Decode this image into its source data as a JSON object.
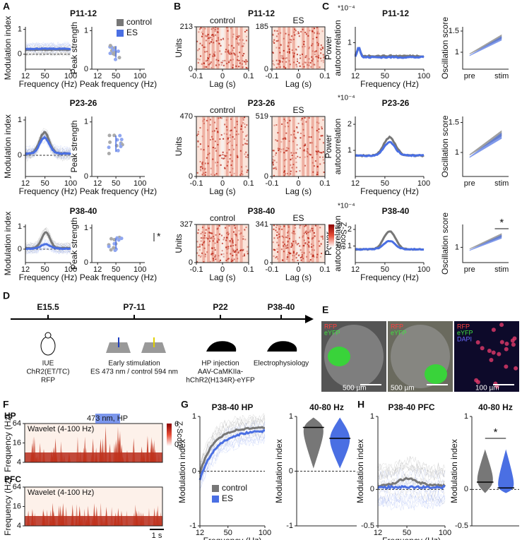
{
  "figure": {
    "panel_labels": [
      "A",
      "B",
      "C",
      "D",
      "E",
      "F",
      "G",
      "H"
    ],
    "ages": [
      "P11-12",
      "P23-26",
      "P38-40"
    ],
    "legend": [
      "control",
      "ES"
    ],
    "exponent": "*10⁻⁴",
    "significance": "*",
    "heat_colorbar": {
      "ticks": [
        "2",
        "0"
      ],
      "label": "Z-Score"
    },
    "plots": [
      {
        "xlabel": "Frequency (Hz)",
        "ylabel": [
          "Modulation index"
        ],
        "xlim": [
          12,
          100
        ],
        "xticks": [
          12,
          50,
          100
        ],
        "ylim": [
          -0.6,
          1.1
        ],
        "yticks": [
          0,
          1
        ]
      },
      {
        "xlabel": "Peak frequency (Hz)",
        "ylabel": [
          "Peak strength"
        ],
        "xlim": [
          0,
          110
        ],
        "xticks": [
          12,
          50,
          100
        ],
        "ylim": [
          0,
          1.1
        ],
        "yticks": [
          0,
          1
        ]
      },
      {
        "subtitle": "control",
        "xlabel": "Lag (s)",
        "ylabel": [
          "Units"
        ],
        "xlim": [
          -0.1,
          0.1
        ],
        "xticks": [
          -0.1,
          0,
          0.1
        ],
        "ylim": [
          0,
          213
        ],
        "yticks": [
          0,
          213
        ]
      },
      {
        "subtitle": "ES",
        "xlabel": "Lag (s)",
        "xlim": [
          -0.1,
          0.1
        ],
        "xticks": [
          -0.1,
          0,
          0.1
        ],
        "ylim": [
          0,
          185
        ],
        "yticks": [
          0,
          185
        ]
      },
      {
        "xlabel": "Frequency (Hz)",
        "ylabel": [
          "Power",
          "autocorrelation"
        ],
        "xlim": [
          12,
          100
        ],
        "xticks": [
          12,
          50,
          100
        ],
        "ylim": [
          0,
          1.6
        ],
        "yticks": [
          1
        ]
      },
      {
        "ylabel": [
          "Oscillation score"
        ],
        "xcategories": [
          "pre",
          "stim"
        ],
        "ylim": [
          0.6,
          1.6
        ],
        "yticks": [
          1,
          1.5
        ]
      },
      {
        "xlabel": "Frequency (Hz)",
        "ylabel": [
          "Modulation index"
        ],
        "xlim": [
          12,
          100
        ],
        "xticks": [
          12,
          50,
          100
        ],
        "ylim": [
          -0.6,
          1.1
        ],
        "yticks": [
          0,
          1
        ]
      },
      {
        "xlabel": "Peak frequency (Hz)",
        "ylabel": [
          "Peak strength"
        ],
        "xlim": [
          0,
          110
        ],
        "xticks": [
          12,
          50,
          100
        ],
        "ylim": [
          0,
          1.1
        ],
        "yticks": [
          0,
          1
        ]
      },
      {
        "subtitle": "control",
        "xlabel": "Lag (s)",
        "ylabel": [
          "Units"
        ],
        "xlim": [
          -0.1,
          0.1
        ],
        "xticks": [
          -0.1,
          0,
          0.1
        ],
        "ylim": [
          0,
          470
        ],
        "yticks": [
          0,
          470
        ]
      },
      {
        "subtitle": "ES",
        "xlabel": "Lag (s)",
        "xlim": [
          -0.1,
          0.1
        ],
        "xticks": [
          -0.1,
          0,
          0.1
        ],
        "ylim": [
          0,
          519
        ],
        "yticks": [
          0,
          519
        ]
      },
      {
        "xlabel": "Frequency (Hz)",
        "ylabel": [
          "Power",
          "autocorrelation"
        ],
        "xlim": [
          12,
          100
        ],
        "xticks": [
          12,
          50,
          100
        ],
        "ylim": [
          0,
          2.3
        ],
        "yticks": [
          1,
          2
        ]
      },
      {
        "ylabel": [
          "Oscillation score"
        ],
        "xcategories": [
          "pre",
          "stim"
        ],
        "ylim": [
          0.6,
          1.6
        ],
        "yticks": [
          1,
          1.5
        ]
      },
      {
        "xlabel": "Frequency (Hz)",
        "ylabel": [
          "Modulation index"
        ],
        "xlim": [
          12,
          100
        ],
        "xticks": [
          12,
          50,
          100
        ],
        "ylim": [
          -0.6,
          1.1
        ],
        "yticks": [
          0,
          1
        ]
      },
      {
        "xlabel": "Peak frequency (Hz)",
        "ylabel": [
          "Peak strength"
        ],
        "xlim": [
          0,
          110
        ],
        "xticks": [
          12,
          50,
          100
        ],
        "ylim": [
          0,
          1.1
        ],
        "yticks": [
          0,
          1
        ]
      },
      {
        "subtitle": "control",
        "xlabel": "Lag (s)",
        "ylabel": [
          "Units"
        ],
        "xlim": [
          -0.1,
          0.1
        ],
        "xticks": [
          -0.1,
          0,
          0.1
        ],
        "ylim": [
          0,
          327
        ],
        "yticks": [
          0,
          327
        ]
      },
      {
        "subtitle": "ES",
        "xlabel": "Lag (s)",
        "xlim": [
          -0.1,
          0.1
        ],
        "xticks": [
          -0.1,
          0,
          0.1
        ],
        "ylim": [
          0,
          341
        ],
        "yticks": [
          0,
          341
        ]
      },
      {
        "xlabel": "Frequency (Hz)",
        "ylabel": [
          "Power",
          "autocorrelation"
        ],
        "xlim": [
          12,
          100
        ],
        "xticks": [
          12,
          50,
          100
        ],
        "ylim": [
          0,
          2.3
        ],
        "yticks": [
          1,
          2
        ]
      },
      {
        "ylabel": [
          "Oscillation score"
        ],
        "xcategories": [
          "pre",
          "stim"
        ],
        "ylim": [
          0.6,
          1.6
        ],
        "yticks": [
          1
        ]
      },
      {
        "title": "P38-40 HP",
        "xlabel": "Frequency (Hz)",
        "ylabel": [
          "Modulation index"
        ],
        "xlim": [
          12,
          100
        ],
        "xticks": [
          12,
          50,
          100
        ],
        "ylim": [
          -1,
          1
        ],
        "yticks": [
          -1,
          0,
          1
        ]
      },
      {
        "title": "40-80 Hz",
        "ylabel": [
          "Modulation index"
        ],
        "ylim": [
          -1,
          1
        ],
        "yticks": [
          -1,
          0,
          1
        ]
      },
      {
        "title": "P38-40 PFC",
        "xlabel": "Frequency (Hz)",
        "ylabel": [
          "Modulation index"
        ],
        "xlim": [
          12,
          100
        ],
        "xticks": [
          12,
          50,
          100
        ],
        "ylim": [
          -0.5,
          1
        ],
        "yticks": [
          -0.5,
          0,
          1
        ]
      },
      {
        "title": "40-80 Hz",
        "ylabel": [
          "Modulation index"
        ],
        "ylim": [
          -0.5,
          1
        ],
        "yticks": [
          -0.5,
          0,
          1
        ]
      }
    ],
    "timeline": [
      {
        "age": "E15.5",
        "lines": [
          "IUE",
          "ChR2(ET/TC)",
          "RFP"
        ]
      },
      {
        "age": "P7-11",
        "lines": [
          "Early stimulation",
          "ES 473 nm / control 594 nm"
        ]
      },
      {
        "age": "P22",
        "lines": [
          "HP injection",
          "AAV-CaMKIIa-",
          "hChR2(H134R)-eYFP"
        ]
      },
      {
        "age": "P38-40",
        "lines": [
          "Electrophysiology"
        ]
      }
    ],
    "images": [
      {
        "labels": [
          "RFP",
          "eYFP"
        ],
        "scale": "500 µm"
      },
      {
        "labels": [
          "RFP",
          "eYFP"
        ],
        "scale": "500 µm"
      },
      {
        "labels": [
          "RFP",
          "eYFP",
          "DAPI"
        ],
        "scale": "100 µm"
      }
    ],
    "wavelets": {
      "regions": [
        "HP",
        "PFC"
      ],
      "label": "Wavelet (4-100 Hz)",
      "stimulus": "473 nm, HP",
      "ylabel": "Frequency (Hz)",
      "yticks": [
        64,
        16,
        4
      ],
      "colorbar": {
        "ticks": [
          "6",
          "0"
        ],
        "label": "Z-Score"
      },
      "scalebar": "1 s"
    }
  }
}
